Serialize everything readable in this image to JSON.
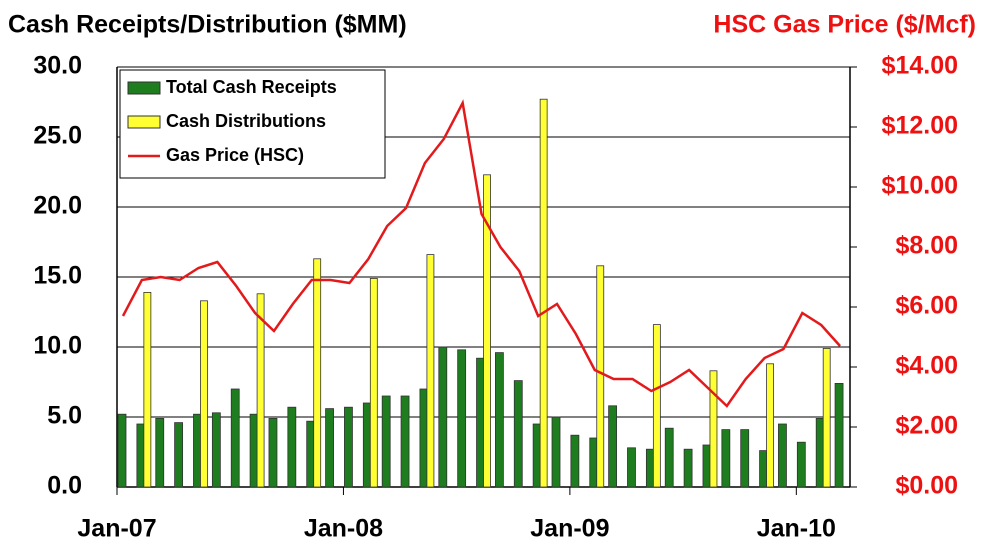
{
  "chart_data": {
    "type": "bar-line",
    "title": "Cash Receipts/Distribution ($MM)",
    "y2_title": "HSC Gas Price ($/Mcf)",
    "categories": [
      "Jan-07",
      null,
      null,
      null,
      null,
      null,
      null,
      null,
      null,
      null,
      null,
      null,
      "Jan-08",
      null,
      null,
      null,
      null,
      null,
      null,
      null,
      null,
      null,
      null,
      null,
      "Jan-09",
      null,
      null,
      null,
      null,
      null,
      null,
      null,
      null,
      null,
      null,
      null,
      "Jan-10",
      null,
      null
    ],
    "series": [
      {
        "name": "Total Cash Receipts",
        "type": "bar",
        "color": "#1e7d1e",
        "values": [
          5.2,
          4.5,
          4.9,
          4.6,
          5.2,
          5.3,
          7.0,
          5.2,
          4.9,
          5.7,
          4.7,
          5.6,
          5.7,
          6.0,
          6.5,
          6.5,
          7.0,
          10.0,
          9.8,
          9.2,
          9.6,
          7.6,
          4.5,
          5.0,
          3.7,
          3.5,
          5.8,
          2.8,
          2.7,
          4.2,
          2.7,
          3.0,
          4.1,
          4.1,
          2.6,
          4.5,
          3.2,
          4.9,
          7.4
        ]
      },
      {
        "name": "Cash Distributions",
        "type": "bar",
        "color": "#ffff33",
        "values": [
          null,
          13.9,
          null,
          null,
          13.3,
          null,
          null,
          13.8,
          null,
          null,
          16.3,
          null,
          null,
          14.9,
          null,
          null,
          16.6,
          null,
          null,
          22.3,
          null,
          null,
          27.7,
          null,
          null,
          15.8,
          null,
          null,
          11.6,
          null,
          null,
          8.3,
          null,
          null,
          8.8,
          null,
          null,
          9.9,
          null
        ]
      },
      {
        "name": "Gas Price (HSC)",
        "type": "line",
        "axis": "y2",
        "color": "#e31a1c",
        "values": [
          5.7,
          6.9,
          7.0,
          6.9,
          7.3,
          7.5,
          6.7,
          5.8,
          5.2,
          6.1,
          6.9,
          6.9,
          6.8,
          7.6,
          8.7,
          9.3,
          10.8,
          11.6,
          12.8,
          9.1,
          8.0,
          7.2,
          5.7,
          6.1,
          5.1,
          3.9,
          3.6,
          3.6,
          3.2,
          3.5,
          3.9,
          3.3,
          2.7,
          3.6,
          4.3,
          4.6,
          5.8,
          5.4,
          4.7
        ]
      }
    ],
    "ylim": [
      0,
      30
    ],
    "yticks": [
      {
        "value": 0,
        "label": "0.0"
      },
      {
        "value": 5,
        "label": "5.0"
      },
      {
        "value": 10,
        "label": "10.0"
      },
      {
        "value": 15,
        "label": "15.0"
      },
      {
        "value": 20,
        "label": "20.0"
      },
      {
        "value": 25,
        "label": "25.0"
      },
      {
        "value": 30,
        "label": "30.0"
      }
    ],
    "y2lim": [
      0,
      14
    ],
    "y2ticks": [
      {
        "value": 0,
        "label": "$0.00"
      },
      {
        "value": 2,
        "label": "$2.00"
      },
      {
        "value": 4,
        "label": "$4.00"
      },
      {
        "value": 6,
        "label": "$6.00"
      },
      {
        "value": 8,
        "label": "$8.00"
      },
      {
        "value": 10,
        "label": "$10.00"
      },
      {
        "value": 12,
        "label": "$12.00"
      },
      {
        "value": 14,
        "label": "$14.00"
      }
    ],
    "grid": true,
    "legend": "upper left"
  }
}
